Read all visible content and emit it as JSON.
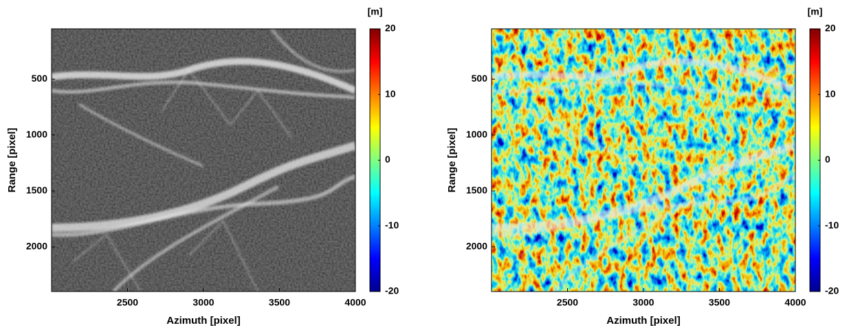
{
  "chart_data": [
    {
      "type": "image",
      "xlabel": "Azimuth [pixel]",
      "ylabel": "Range [pixel]",
      "xlim": [
        2000,
        4000
      ],
      "xticks": [
        2500,
        3000,
        3500,
        4000
      ],
      "ylim": [
        2400,
        50
      ],
      "yticks": [
        500,
        1000,
        1500,
        2000
      ],
      "colorbar_label": "[m]",
      "colormap": "jet",
      "clim": [
        -20,
        20
      ],
      "cticks": [
        -20,
        -10,
        0,
        10,
        20
      ]
    },
    {
      "type": "image",
      "xlabel": "Azimuth [pixel]",
      "ylabel": "Range [pixel]",
      "xlim": [
        2000,
        4000
      ],
      "xticks": [
        2500,
        3000,
        3500,
        4000
      ],
      "ylim": [
        2400,
        50
      ],
      "yticks": [
        500,
        1000,
        1500,
        2000
      ],
      "colorbar_label": "[m]",
      "colormap": "jet",
      "clim": [
        -20,
        20
      ],
      "cticks": [
        -20,
        -10,
        0,
        10,
        20
      ]
    }
  ]
}
